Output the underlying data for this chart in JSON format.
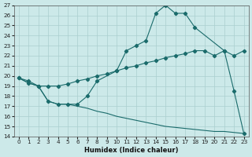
{
  "xlabel": "Humidex (Indice chaleur)",
  "xlim": [
    -0.5,
    23.5
  ],
  "ylim": [
    14,
    27
  ],
  "yticks": [
    14,
    15,
    16,
    17,
    18,
    19,
    20,
    21,
    22,
    23,
    24,
    25,
    26,
    27
  ],
  "xticks": [
    0,
    1,
    2,
    3,
    4,
    5,
    6,
    7,
    8,
    9,
    10,
    11,
    12,
    13,
    14,
    15,
    16,
    17,
    18,
    19,
    20,
    21,
    22,
    23
  ],
  "background_color": "#cce9e9",
  "grid_color": "#aacfcf",
  "line_color": "#1a6b6b",
  "line1_x": [
    0,
    1,
    2,
    3,
    4,
    5,
    6,
    7,
    8,
    10,
    11,
    12,
    13,
    14,
    15,
    16,
    17,
    18,
    21,
    22,
    23
  ],
  "line1_y": [
    19.8,
    19.5,
    19.0,
    17.5,
    17.2,
    17.2,
    17.2,
    18.0,
    19.5,
    20.5,
    22.5,
    23.0,
    23.5,
    26.2,
    27.0,
    26.2,
    26.2,
    24.8,
    22.5,
    18.5,
    14.3
  ],
  "line2_x": [
    0,
    1,
    2,
    3,
    4,
    5,
    6,
    7,
    8,
    9,
    10,
    11,
    12,
    13,
    14,
    15,
    16,
    17,
    18,
    19,
    20,
    21,
    22,
    23
  ],
  "line2_y": [
    19.8,
    19.3,
    19.0,
    19.0,
    19.0,
    19.2,
    19.5,
    19.7,
    20.0,
    20.2,
    20.5,
    20.8,
    21.0,
    21.3,
    21.5,
    21.8,
    22.0,
    22.2,
    22.5,
    22.5,
    22.0,
    22.5,
    22.0,
    22.5
  ],
  "line3_x": [
    0,
    1,
    2,
    3,
    4,
    5,
    6,
    7,
    8,
    9,
    10,
    11,
    12,
    13,
    14,
    15,
    16,
    17,
    18,
    19,
    20,
    21,
    22,
    23
  ],
  "line3_y": [
    19.8,
    19.3,
    19.0,
    17.5,
    17.2,
    17.2,
    17.0,
    16.8,
    16.5,
    16.3,
    16.0,
    15.8,
    15.6,
    15.4,
    15.2,
    15.0,
    14.9,
    14.8,
    14.7,
    14.6,
    14.5,
    14.5,
    14.4,
    14.3
  ]
}
